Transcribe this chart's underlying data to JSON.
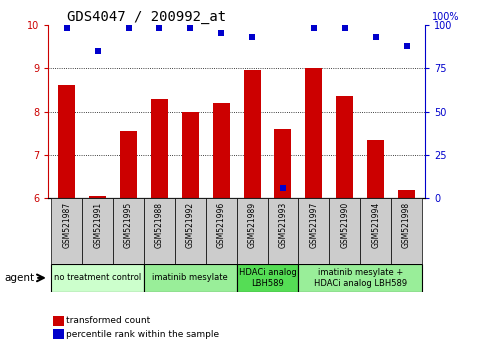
{
  "title": "GDS4047 / 200992_at",
  "samples": [
    "GSM521987",
    "GSM521991",
    "GSM521995",
    "GSM521988",
    "GSM521992",
    "GSM521996",
    "GSM521989",
    "GSM521993",
    "GSM521997",
    "GSM521990",
    "GSM521994",
    "GSM521998"
  ],
  "bar_values": [
    8.6,
    6.05,
    7.55,
    8.3,
    7.98,
    8.2,
    8.95,
    7.6,
    9.0,
    8.35,
    7.35,
    6.2
  ],
  "dot_values": [
    98,
    85,
    98,
    98,
    98,
    95,
    93,
    6,
    98,
    98,
    93,
    88
  ],
  "ylim_left": [
    6,
    10
  ],
  "ylim_right": [
    0,
    100
  ],
  "yticks_left": [
    6,
    7,
    8,
    9,
    10
  ],
  "yticks_right": [
    0,
    25,
    50,
    75,
    100
  ],
  "bar_color": "#cc0000",
  "dot_color": "#0000cc",
  "groups": [
    {
      "label": "no treatment control",
      "start": 0,
      "end": 3,
      "color": "#ccffcc"
    },
    {
      "label": "imatinib mesylate",
      "start": 3,
      "end": 6,
      "color": "#99ee99"
    },
    {
      "label": "HDACi analog\nLBH589",
      "start": 6,
      "end": 8,
      "color": "#55dd55"
    },
    {
      "label": "imatinib mesylate +\nHDACi analog LBH589",
      "start": 8,
      "end": 12,
      "color": "#99ee99"
    }
  ],
  "legend_items": [
    {
      "label": "transformed count",
      "color": "#cc0000"
    },
    {
      "label": "percentile rank within the sample",
      "color": "#0000cc"
    }
  ],
  "agent_label": "agent",
  "tick_label_color_left": "#cc0000",
  "tick_label_color_right": "#0000cc",
  "grid_ticks": [
    7,
    8,
    9
  ],
  "bar_width": 0.55,
  "sample_box_color": "#cccccc",
  "right_axis_label": "100%"
}
